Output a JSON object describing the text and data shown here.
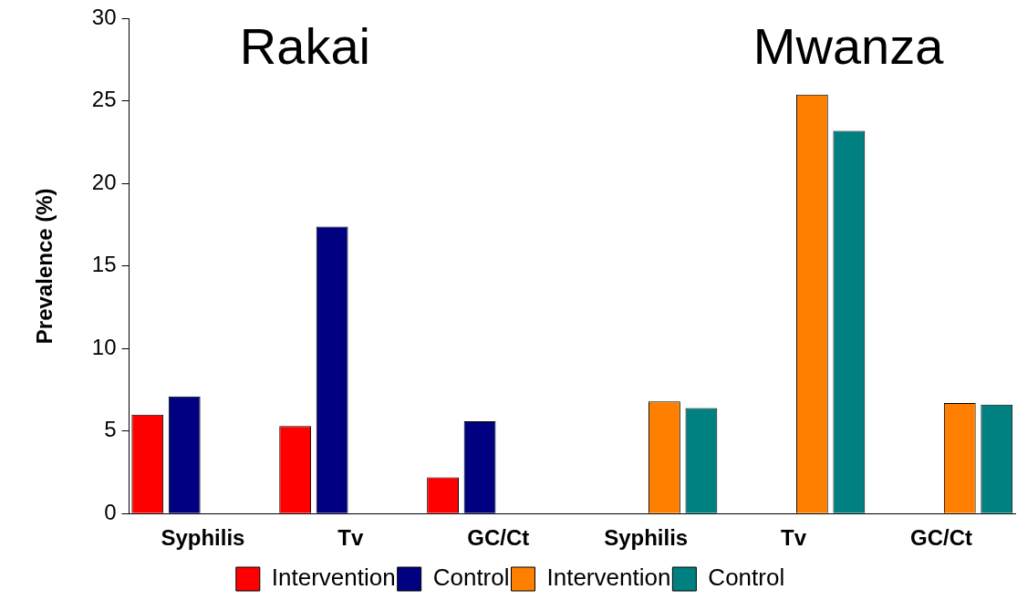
{
  "chart_data": {
    "type": "bar",
    "ylabel": "Prevalence (%)",
    "annotations": [
      "Rakai",
      "Mwanza"
    ],
    "categories": [
      "Syphilis",
      "Tv",
      "GC/Ct",
      "Syphilis",
      "Tv",
      "GC/Ct"
    ],
    "series": [
      {
        "name": "Intervention",
        "color": "#ff0000",
        "values": [
          6.0,
          5.3,
          2.2,
          null,
          null,
          null
        ]
      },
      {
        "name": "Control",
        "color": "#000080",
        "values": [
          7.1,
          17.4,
          5.6,
          null,
          null,
          null
        ]
      },
      {
        "name": "Intervention",
        "color": "#ff8000",
        "values": [
          null,
          null,
          null,
          6.8,
          25.4,
          6.7
        ]
      },
      {
        "name": "Control",
        "color": "#008080",
        "values": [
          null,
          null,
          null,
          6.4,
          23.2,
          6.6
        ]
      }
    ],
    "ylim": [
      0,
      30
    ],
    "yticks": [
      0,
      5,
      10,
      15,
      20,
      25,
      30
    ],
    "grid": false,
    "legend": "bottom"
  }
}
